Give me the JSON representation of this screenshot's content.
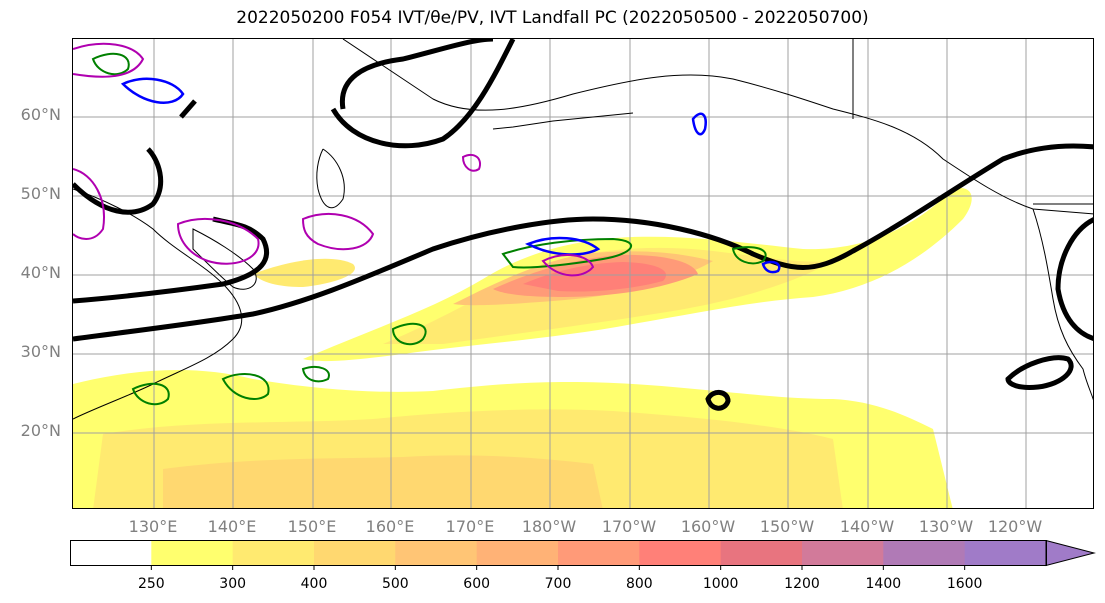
{
  "title": "2022050200 F054 IVT/θe/PV, IVT Landfall PC (2022050500 - 2022050700)",
  "lat_labels": [
    "60°N",
    "50°N",
    "40°N",
    "30°N",
    "20°N"
  ],
  "lon_labels": [
    "130°E",
    "140°E",
    "150°E",
    "160°E",
    "170°E",
    "180°W",
    "170°W",
    "160°W",
    "150°W",
    "140°W",
    "130°W",
    "120°W"
  ],
  "colorbar": {
    "ticks": [
      "250",
      "300",
      "400",
      "500",
      "600",
      "700",
      "800",
      "1000",
      "1200",
      "1400",
      "1600"
    ],
    "colors": [
      "#ffffff",
      "#ffff6e",
      "#ffea70",
      "#ffd870",
      "#ffc575",
      "#ffb276",
      "#ff9a78",
      "#ff8078",
      "#e8747f",
      "#d27a9a",
      "#b07ab6",
      "#a07bc8"
    ]
  },
  "contour_colors": {
    "theta_e": "#000000",
    "pv_positive": "#008000",
    "pv_blue": "#0000ff",
    "pv_magenta": "#b000b0"
  }
}
